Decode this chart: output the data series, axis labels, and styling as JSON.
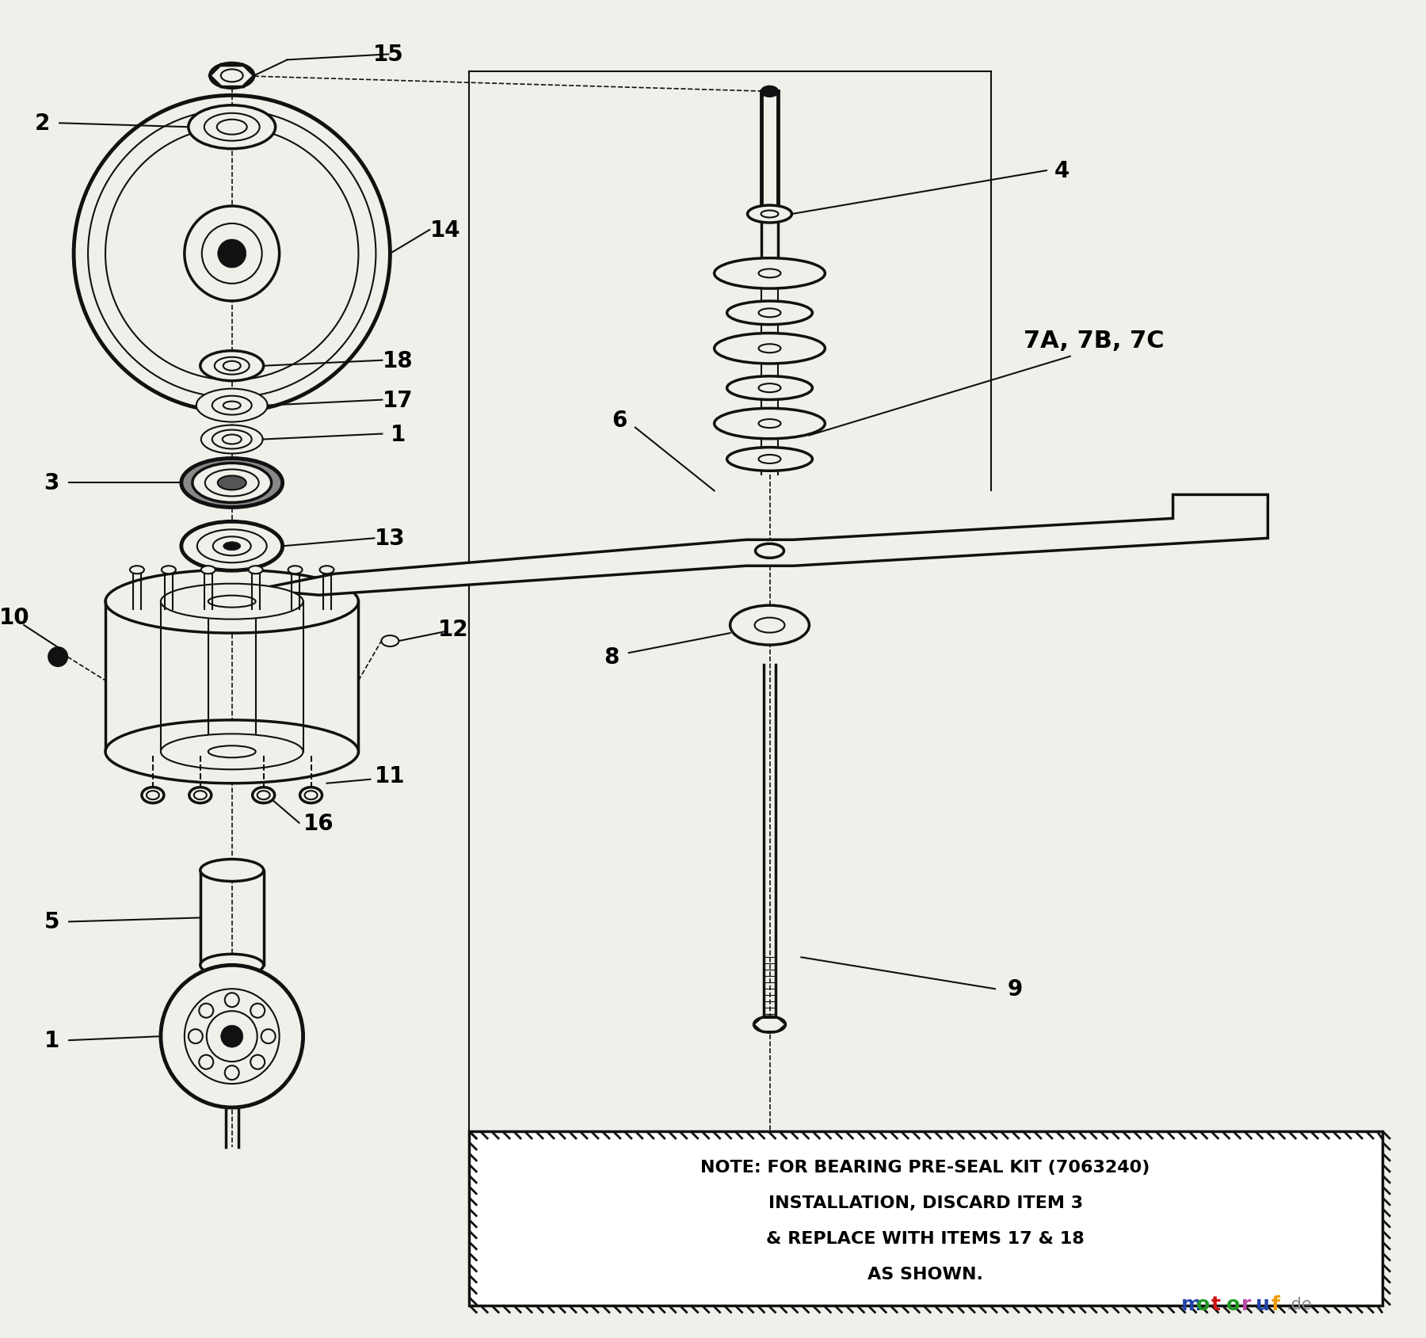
{
  "bg_color": "#f0f0eb",
  "line_color": "#111111",
  "note_text_line1": "NOTE: FOR BEARING PRE-SEAL KIT (7063240)",
  "note_text_line2": "INSTALLATION, DISCARD ITEM 3",
  "note_text_line3": "& REPLACE WITH ITEMS 17 & 18",
  "note_text_line4": "AS SHOWN.",
  "watermark_colors": {
    "m": "#2244aa",
    "o": "#229922",
    "t": "#cc1111",
    "o2": "#229922",
    "r": "#bb44aa",
    "u": "#2244aa",
    "f": "#ee9900",
    "de": "#888888"
  }
}
